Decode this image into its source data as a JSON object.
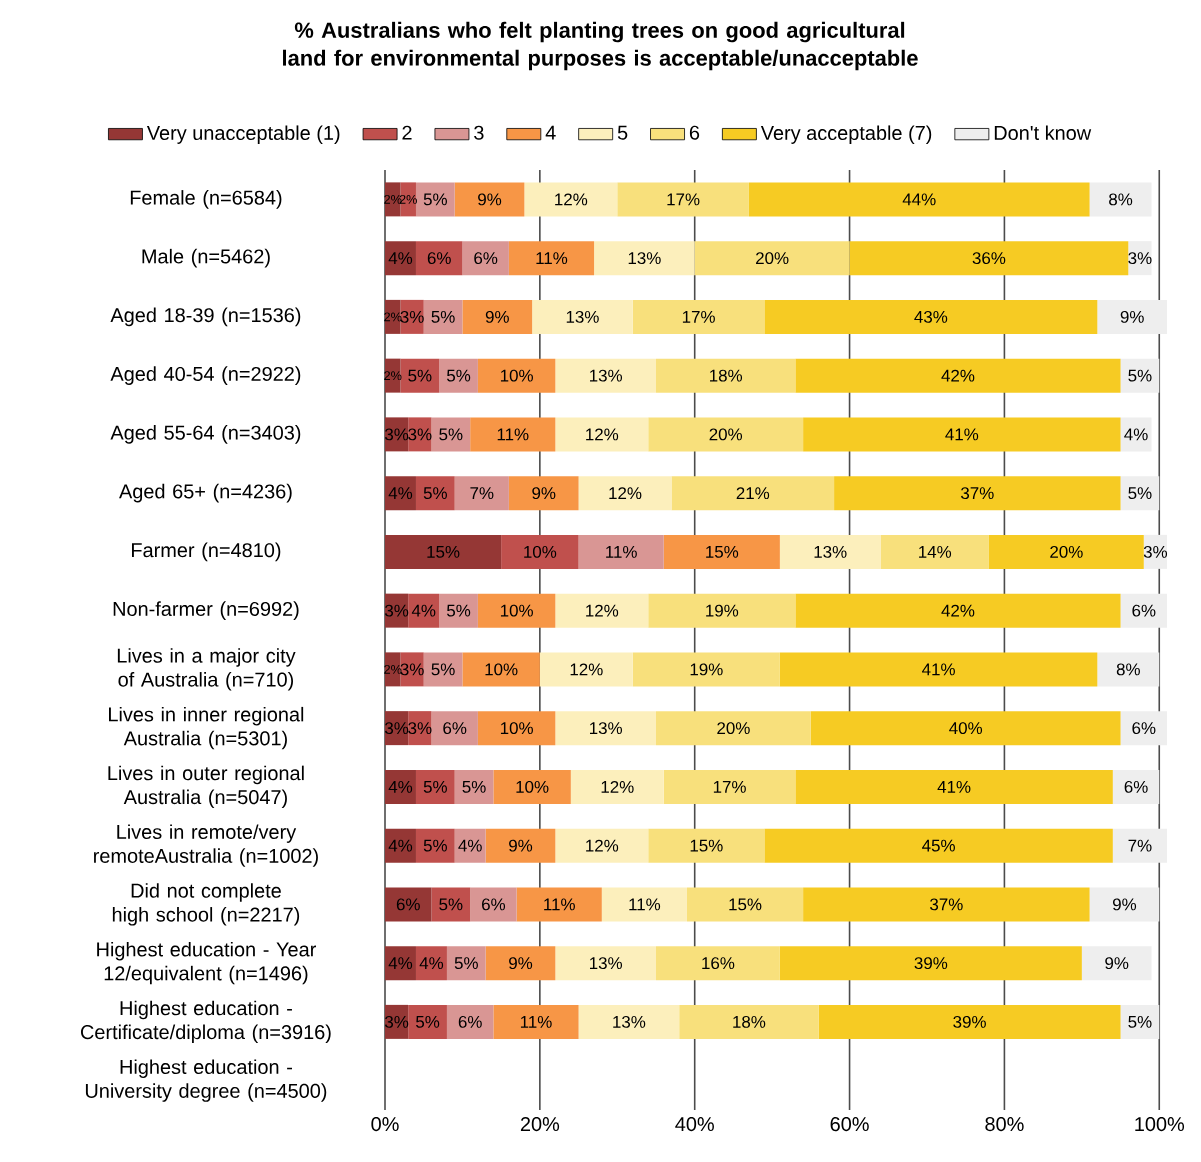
{
  "chart_data": {
    "type": "bar",
    "orientation": "horizontal",
    "stacked": true,
    "title": "% Australians who felt planting trees on good agricultural land for environmental purposes is acceptable/unacceptable",
    "categories": [
      "Female (n=6584)",
      "Male (n=5462)",
      "Aged 18-39 (n=1536)",
      "Aged 40-54 (n=2922)",
      "Aged 55-64 (n=3403)",
      "Aged 65+ (n=4236)",
      "Farmer (n=4810)",
      "Non-farmer (n=6992)",
      "Lives in a major city of Australia (n=710)",
      "Lives in inner regional Australia (n=5301)",
      "Lives in outer regional Australia (n=5047)",
      "Lives in remote/very remoteAustralia (n=1002)",
      "Did not complete high school (n=2217)",
      "Highest education - Year 12/equivalent (n=1496)",
      "Highest education - Certificate/diploma (n=3916)",
      "Highest education - University degree (n=4500)"
    ],
    "series": [
      {
        "name": "Very unacceptable (1)",
        "color": "#953735",
        "values": [
          2,
          4,
          2,
          2,
          3,
          4,
          15,
          3,
          2,
          3,
          4,
          4,
          6,
          4,
          3,
          null
        ],
        "value_labels": [
          "2%",
          "4%",
          "2%",
          "2%",
          "3%",
          "4%",
          "15%",
          "3%",
          "2%",
          "3%",
          "4%",
          "4%",
          "6%",
          "4%",
          "3%",
          null
        ]
      },
      {
        "name": "2",
        "color": "#c0504d",
        "values": [
          2,
          6,
          3,
          5,
          3,
          5,
          10,
          4,
          3,
          3,
          5,
          5,
          5,
          4,
          5,
          null
        ],
        "value_labels": [
          "2%",
          "6%",
          "3%",
          "5%",
          "3%",
          "5%",
          "10%",
          "4%",
          "3%",
          "3%",
          "5%",
          "5%",
          "5%",
          "4%",
          "5%",
          null
        ]
      },
      {
        "name": "3",
        "color": "#d99694",
        "values": [
          5,
          6,
          5,
          5,
          5,
          7,
          11,
          5,
          5,
          6,
          5,
          4,
          6,
          5,
          6,
          null
        ],
        "value_labels": [
          "5%",
          "6%",
          "5%",
          "5%",
          "5%",
          "7%",
          "11%",
          "5%",
          "5%",
          "6%",
          "5%",
          "4%",
          "6%",
          "5%",
          "6%",
          null
        ]
      },
      {
        "name": "4",
        "color": "#f79646",
        "values": [
          9,
          11,
          9,
          10,
          11,
          9,
          15,
          10,
          10,
          10,
          10,
          9,
          11,
          9,
          11,
          null
        ],
        "value_labels": [
          "9%",
          "11%",
          "9%",
          "10%",
          "11%",
          "9%",
          "15%",
          "10%",
          "10%",
          "10%",
          "10%",
          "9%",
          "11%",
          "9%",
          "11%",
          null
        ]
      },
      {
        "name": "5",
        "color": "#fcefbc",
        "values": [
          12,
          13,
          13,
          13,
          12,
          12,
          13,
          12,
          12,
          13,
          12,
          12,
          11,
          13,
          13,
          null
        ],
        "value_labels": [
          "12%",
          "13%",
          "13%",
          "13%",
          "12%",
          "12%",
          "13%",
          "12%",
          "12%",
          "13%",
          "12%",
          "12%",
          "11%",
          "13%",
          "13%",
          null
        ]
      },
      {
        "name": "6",
        "color": "#f8e07c",
        "values": [
          17,
          20,
          17,
          18,
          20,
          21,
          14,
          19,
          19,
          20,
          17,
          15,
          15,
          16,
          18,
          null
        ],
        "value_labels": [
          "17%",
          "20%",
          "17%",
          "18%",
          "20%",
          "21%",
          "14%",
          "19%",
          "19%",
          "20%",
          "17%",
          "15%",
          "15%",
          "16%",
          "18%",
          null
        ]
      },
      {
        "name": "Very acceptable (7)",
        "color": "#f6cb23",
        "values": [
          44,
          36,
          43,
          42,
          41,
          37,
          20,
          42,
          41,
          40,
          41,
          45,
          37,
          39,
          39,
          null
        ],
        "value_labels": [
          "44%",
          "36%",
          "43%",
          "42%",
          "41%",
          "37%",
          "20%",
          "42%",
          "41%",
          "40%",
          "41%",
          "45%",
          "37%",
          "39%",
          "39%",
          null
        ]
      },
      {
        "name": "Don't know",
        "color": "#eeeeee",
        "values": [
          8,
          3,
          9,
          5,
          4,
          5,
          3,
          6,
          8,
          6,
          6,
          7,
          9,
          9,
          5,
          null
        ],
        "value_labels": [
          "8%",
          "3%",
          "9%",
          "5%",
          "4%",
          "5%",
          "3%",
          "6%",
          "8%",
          "6%",
          "6%",
          "7%",
          "9%",
          "9%",
          "5%",
          null
        ]
      }
    ],
    "xlim": [
      0,
      101
    ],
    "xticks": [
      {
        "value": 0,
        "label": "0%"
      },
      {
        "value": 20,
        "label": "20%"
      },
      {
        "value": 40,
        "label": "40%"
      },
      {
        "value": 60,
        "label": "60%"
      },
      {
        "value": 80,
        "label": "80%"
      },
      {
        "value": 100,
        "label": "100%"
      }
    ],
    "grid": "x",
    "legend": "top"
  }
}
